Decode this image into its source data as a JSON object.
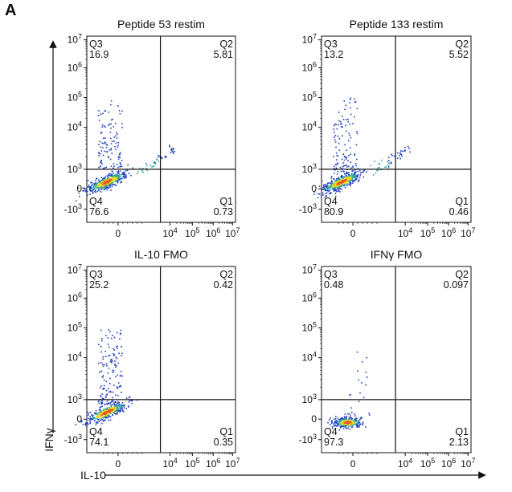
{
  "figure": {
    "panel_letter": "A",
    "x_axis_label": "IL-10",
    "y_axis_label": "IFNγ"
  },
  "colors": {
    "axis": "#111111",
    "density_low": "#1f3fbf",
    "density_mid": "#2aa8a0",
    "density_high": "#f2d21b",
    "density_peak": "#e05a1a"
  },
  "chart_data": [
    {
      "type": "scatter",
      "title": "Peptide 53 restim",
      "xlabel": "IL-10",
      "ylabel": "IFNγ",
      "x_ticks": [
        "0",
        "10^4",
        "10^5",
        "10^6",
        "10^7"
      ],
      "y_ticks": [
        "10^7",
        "10^6",
        "10^5",
        "10^4",
        "10^3",
        "0",
        "-10^3"
      ],
      "quadrants": [
        {
          "name": "Q3",
          "value": "16.9"
        },
        {
          "name": "Q2",
          "value": "5.81"
        },
        {
          "name": "Q4",
          "value": "76.6"
        },
        {
          "name": "Q1",
          "value": "0.73"
        }
      ],
      "population": "restim"
    },
    {
      "type": "scatter",
      "title": "Peptide 133 restim",
      "xlabel": "IL-10",
      "ylabel": "IFNγ",
      "x_ticks": [
        "0",
        "10^4",
        "10^5",
        "10^6",
        "10^7"
      ],
      "y_ticks": [
        "10^7",
        "10^6",
        "10^5",
        "10^4",
        "10^3",
        "0",
        "-10^3"
      ],
      "quadrants": [
        {
          "name": "Q3",
          "value": "13.2"
        },
        {
          "name": "Q2",
          "value": "5.52"
        },
        {
          "name": "Q4",
          "value": "80.9"
        },
        {
          "name": "Q1",
          "value": "0.46"
        }
      ],
      "population": "restim"
    },
    {
      "type": "scatter",
      "title": "IL-10 FMO",
      "xlabel": "IL-10",
      "ylabel": "IFNγ",
      "x_ticks": [
        "0",
        "10^4",
        "10^5",
        "10^6",
        "10^7"
      ],
      "y_ticks": [
        "10^7",
        "10^6",
        "10^5",
        "10^4",
        "10^3",
        "0",
        "-10^3"
      ],
      "quadrants": [
        {
          "name": "Q3",
          "value": "25.2"
        },
        {
          "name": "Q2",
          "value": "0.42"
        },
        {
          "name": "Q4",
          "value": "74.1"
        },
        {
          "name": "Q1",
          "value": "0.35"
        }
      ],
      "population": "il10fmo"
    },
    {
      "type": "scatter",
      "title": "IFNγ FMO",
      "xlabel": "IL-10",
      "ylabel": "IFNγ",
      "x_ticks": [
        "0",
        "10^4",
        "10^5",
        "10^6",
        "10^7"
      ],
      "y_ticks": [
        "10^7",
        "10^6",
        "10^5",
        "10^4",
        "10^3",
        "0",
        "-10^3"
      ],
      "quadrants": [
        {
          "name": "Q3",
          "value": "0.48"
        },
        {
          "name": "Q2",
          "value": "0.097"
        },
        {
          "name": "Q4",
          "value": "97.3"
        },
        {
          "name": "Q1",
          "value": "2.13"
        }
      ],
      "population": "ifngfmo"
    }
  ]
}
